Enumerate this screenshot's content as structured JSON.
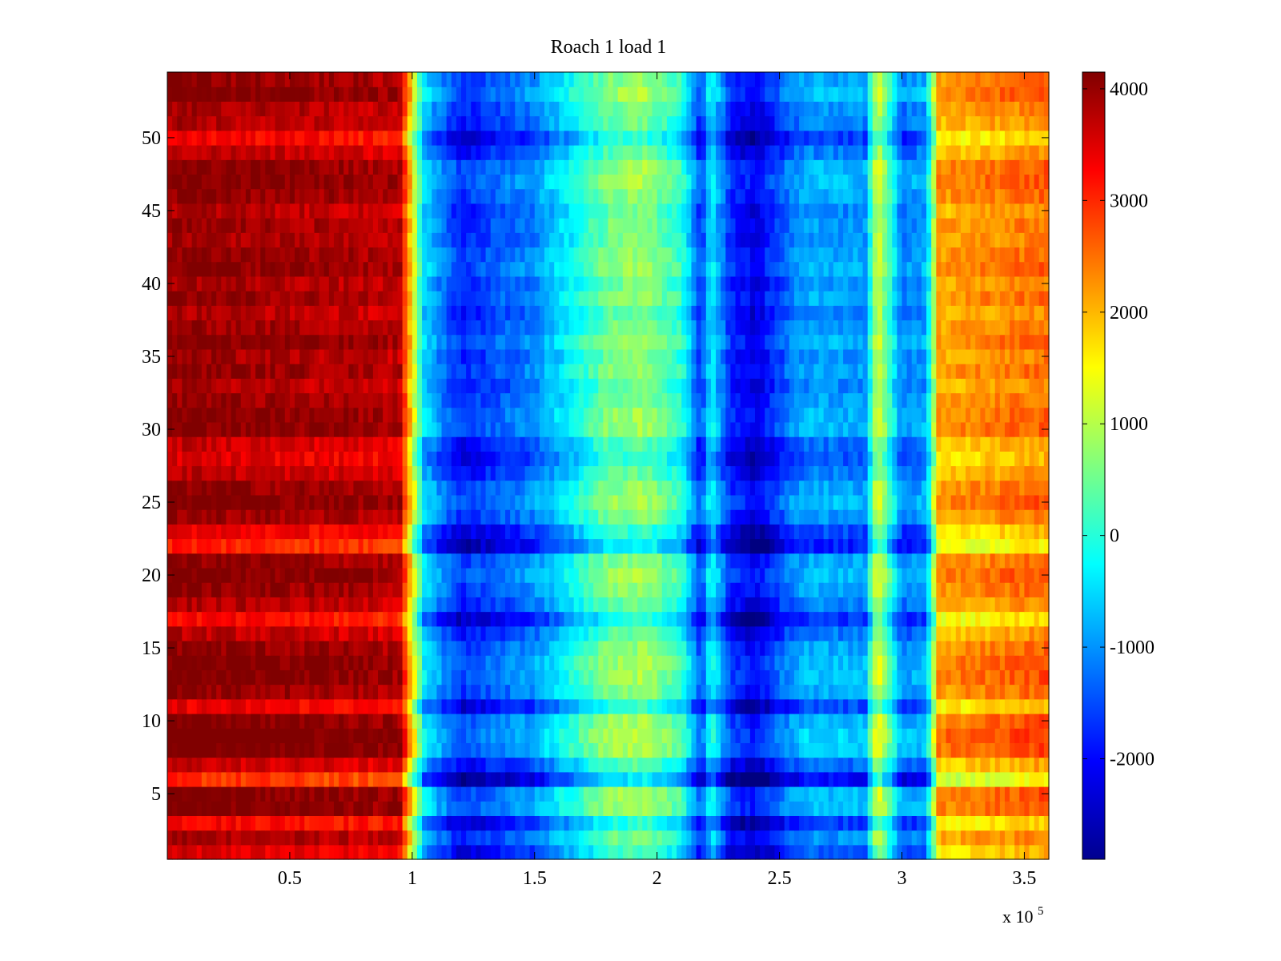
{
  "chart_data": {
    "type": "heatmap",
    "title": "Roach 1 load 1",
    "xlabel": "",
    "ylabel": "",
    "x_multiplier_label": "x 10",
    "x_multiplier_exponent": "5",
    "xlim": [
      0,
      3.6
    ],
    "ylim": [
      0.5,
      54.5
    ],
    "x_ticks": [
      0.5,
      1,
      1.5,
      2,
      2.5,
      3,
      3.5
    ],
    "x_tick_labels": [
      "0.5",
      "1",
      "1.5",
      "2",
      "2.5",
      "3",
      "3.5"
    ],
    "y_ticks": [
      5,
      10,
      15,
      20,
      25,
      30,
      35,
      40,
      45,
      50
    ],
    "y_tick_labels": [
      "5",
      "10",
      "15",
      "20",
      "25",
      "30",
      "35",
      "40",
      "45",
      "50"
    ],
    "rows": 54,
    "colorbar": {
      "colormap": "jet",
      "clim": [
        -2900,
        4150
      ],
      "ticks": [
        4000,
        3000,
        2000,
        1000,
        0,
        -1000,
        -2000
      ],
      "tick_labels": [
        "4000",
        "3000",
        "2000",
        "1000",
        "0",
        "-1000",
        "-2000"
      ]
    },
    "value_profile": {
      "description": "approximate mean value (data units) along x (units of 1e5) for each column band",
      "x": [
        0,
        0.7,
        0.95,
        1.0,
        1.05,
        1.2,
        1.5,
        1.8,
        1.95,
        2.1,
        2.18,
        2.22,
        2.3,
        2.4,
        2.55,
        2.62,
        2.85,
        2.9,
        3.0,
        3.1,
        3.15,
        3.6
      ],
      "values": [
        3700,
        3500,
        3400,
        1200,
        -900,
        -2100,
        -1400,
        200,
        400,
        -300,
        -2000,
        -600,
        -2100,
        -2500,
        -1500,
        -1200,
        -1300,
        1000,
        -1500,
        -1200,
        1800,
        2200
      ]
    },
    "row_variation": {
      "description": "approximate per-row offset in data units (row index 1 = bottom, 54 = top)",
      "offsets": [
        -200,
        300,
        -400,
        700,
        700,
        -900,
        0,
        800,
        900,
        700,
        -300,
        500,
        700,
        700,
        500,
        100,
        -500,
        200,
        500,
        700,
        500,
        -700,
        -300,
        400,
        700,
        500,
        100,
        -200,
        0,
        600,
        600,
        400,
        200,
        500,
        300,
        600,
        400,
        200,
        500,
        300,
        600,
        500,
        300,
        400,
        200,
        500,
        700,
        600,
        100,
        -400,
        200,
        300,
        700,
        500
      ]
    }
  }
}
